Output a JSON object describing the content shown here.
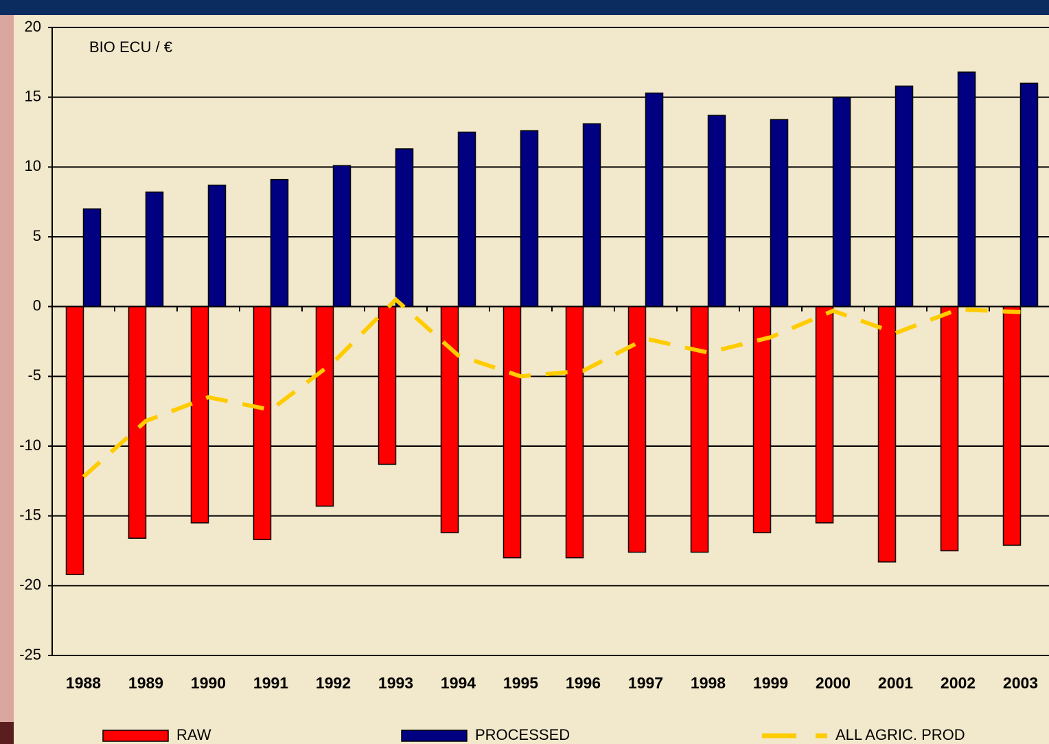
{
  "chart_data": {
    "type": "bar",
    "annotation": "BIO ECU / €",
    "categories": [
      "1988",
      "1989",
      "1990",
      "1991",
      "1992",
      "1993",
      "1994",
      "1995",
      "1996",
      "1997",
      "1998",
      "1999",
      "2000",
      "2001",
      "2002",
      "2003"
    ],
    "series": [
      {
        "name": "RAW",
        "color": "#ff0000",
        "type": "bar",
        "values": [
          -19.2,
          -16.6,
          -15.5,
          -16.7,
          -14.3,
          -11.3,
          -16.2,
          -18.0,
          -18.0,
          -17.6,
          -17.6,
          -16.2,
          -15.5,
          -18.3,
          -17.5,
          -17.1
        ]
      },
      {
        "name": "PROCESSED",
        "color": "#000080",
        "type": "bar",
        "values": [
          7.0,
          8.2,
          8.7,
          9.1,
          10.1,
          11.3,
          12.5,
          12.6,
          13.1,
          15.3,
          13.7,
          13.4,
          15.0,
          15.8,
          16.8,
          16.0
        ]
      },
      {
        "name": "ALL AGRIC. PROD",
        "color": "#ffcc00",
        "type": "line",
        "values": [
          -12.2,
          -8.2,
          -6.5,
          -7.4,
          -4.0,
          0.5,
          -3.5,
          -5.0,
          -4.6,
          -2.3,
          -3.3,
          -2.2,
          -0.3,
          -1.9,
          -0.2,
          -0.4
        ]
      }
    ],
    "ylim": [
      -25,
      20
    ],
    "yticks": [
      -25,
      -20,
      -15,
      -10,
      -5,
      0,
      5,
      10,
      15,
      20
    ],
    "grid": true,
    "legend": "bottom"
  }
}
